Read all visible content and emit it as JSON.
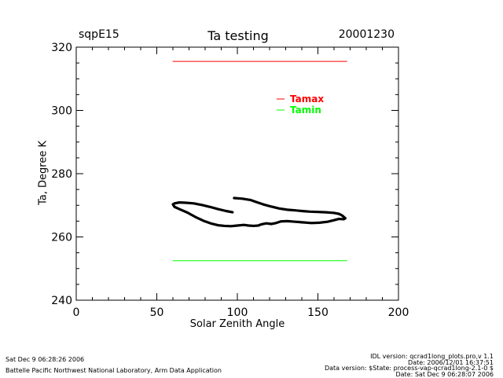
{
  "header": {
    "site": "sqpE15",
    "date": "20001230"
  },
  "footer": {
    "left_timestamp": "Sat Dec  9 06:28:26 2006",
    "institution": "Battelle Pacific Northwest National Laboratory, Arm Data Application",
    "idl_version": "IDL version: qcrad1long_plots.pro,v 1.1",
    "date_line": "Date: 2006/12/01 16:37:51",
    "data_version": "Data version: $State: process-vap-qcrad1long-2.1-0 $",
    "date_line2": "Date: Sat Dec  9 06:28:07 2006"
  },
  "chart_data": {
    "type": "line",
    "title": "Ta testing",
    "xlabel": "Solar Zenith Angle",
    "ylabel": "Ta, Degree K",
    "xlim": [
      0,
      200
    ],
    "ylim": [
      240,
      320
    ],
    "xticks": [
      0,
      50,
      100,
      150,
      200
    ],
    "yticks": [
      240,
      260,
      280,
      300,
      320
    ],
    "x_minor_step": 10,
    "y_minor_step": 5,
    "legend_placement": "top-right",
    "series": [
      {
        "name": "Tamax",
        "color": "#ff0000",
        "x": [
          60,
          168
        ],
        "y": [
          315.5,
          315.5
        ]
      },
      {
        "name": "Tamin",
        "color": "#00ff00",
        "x": [
          60,
          168
        ],
        "y": [
          252.5,
          252.5
        ]
      },
      {
        "color": "#000000",
        "x": [
          98,
          103,
          108,
          112,
          116,
          121,
          126,
          131,
          136,
          140,
          145,
          150,
          155,
          160,
          163,
          165,
          167,
          166,
          163,
          160,
          156,
          151,
          146,
          141,
          136,
          131,
          127,
          124,
          121,
          118,
          115,
          113,
          110,
          107,
          104,
          100,
          96,
          92,
          88,
          84,
          79,
          74,
          69,
          64,
          61,
          60,
          61,
          64,
          68,
          73,
          78,
          83,
          88,
          93,
          97
        ],
        "y": [
          272.3,
          272.1,
          271.7,
          271.0,
          270.3,
          269.6,
          269.0,
          268.6,
          268.4,
          268.2,
          268.0,
          267.9,
          267.8,
          267.6,
          267.3,
          266.8,
          265.9,
          265.6,
          265.7,
          265.3,
          264.8,
          264.5,
          264.4,
          264.6,
          264.8,
          265.0,
          264.9,
          264.4,
          264.1,
          264.3,
          264.0,
          263.6,
          263.5,
          263.6,
          263.8,
          263.6,
          263.4,
          263.5,
          263.7,
          264.2,
          265.1,
          266.3,
          267.7,
          268.8,
          269.5,
          270.3,
          270.6,
          270.9,
          270.8,
          270.6,
          270.1,
          269.5,
          268.8,
          268.2,
          267.8
        ]
      }
    ]
  }
}
